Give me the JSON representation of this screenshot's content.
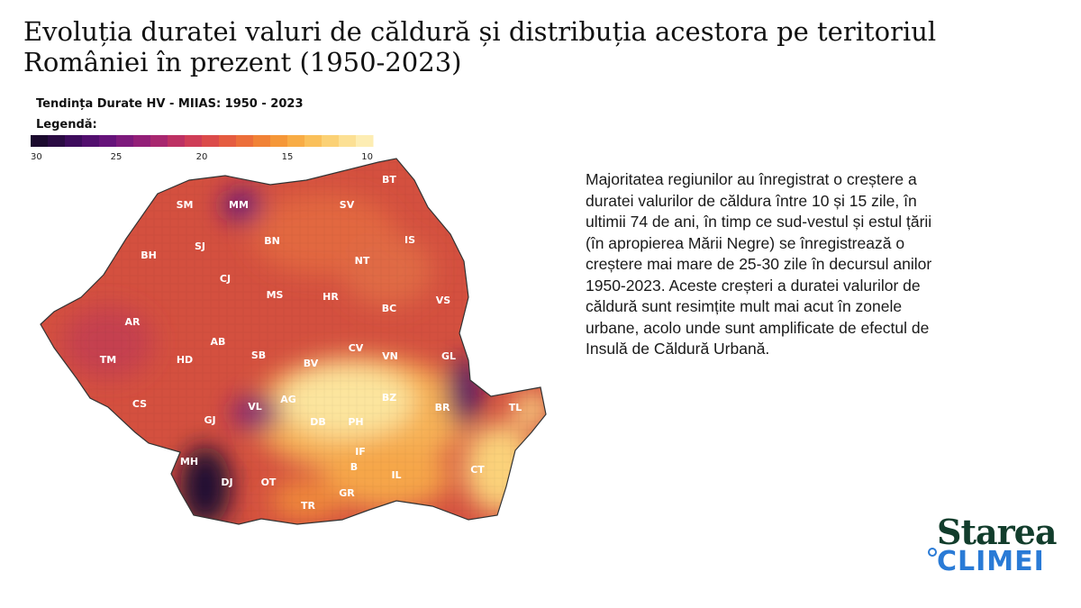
{
  "header": {
    "title_lines": [
      "Evoluția duratei valuri de căldură și distribuția acestora pe teritoriul",
      "României în prezent (1950-2023)"
    ]
  },
  "map": {
    "subtitle": "Tendința Durate HV - MIIAS: 1950 - 2023",
    "legend_title": "Legendă:",
    "legend_colors": [
      "#1b0a2e",
      "#2a0b43",
      "#3d0c5c",
      "#520f6e",
      "#66137a",
      "#7d1a7c",
      "#931f78",
      "#a8276f",
      "#bd3163",
      "#cf3d57",
      "#db4b4a",
      "#e55c40",
      "#ec6e3a",
      "#f18236",
      "#f59738",
      "#f8ac45",
      "#fac05a",
      "#fbd175",
      "#fce094",
      "#fdedb3"
    ],
    "legend_ticks": [
      "30",
      "25",
      "20",
      "15",
      "10"
    ],
    "counties": [
      "SM",
      "MM",
      "BT",
      "SV",
      "SJ",
      "BN",
      "IS",
      "BH",
      "CJ",
      "NT",
      "MS",
      "HR",
      "BC",
      "VS",
      "AR",
      "AB",
      "CV",
      "VN",
      "TM",
      "HD",
      "SB",
      "BV",
      "GL",
      "CS",
      "AG",
      "BZ",
      "BR",
      "TL",
      "GJ",
      "VL",
      "DB",
      "PH",
      "IF",
      "MH",
      "DJ",
      "OT",
      "B",
      "IL",
      "CT",
      "GR",
      "TR"
    ]
  },
  "description": {
    "lines": [
      "Majoritatea regiunilor au înregistrat o creștere a",
      "duratei valurilor de căldura între 10 și 15 zile, în",
      "ultimii 74 de ani,  în timp ce sud-vestul și estul  țării",
      "(în apropierea Mării Negre) se înregistrează o",
      "creștere mai mare de 25-30 zile în decursul anilor",
      "1950-2023. Aceste creșteri a duratei valurilor de",
      "căldură sunt resimțite mult mai acut în zonele",
      "urbane, acolo unde sunt amplificate de efectul de",
      "Insulă de Căldură Urbană."
    ]
  },
  "logo": {
    "top": "Starea",
    "bottom": "CLIMEI"
  }
}
